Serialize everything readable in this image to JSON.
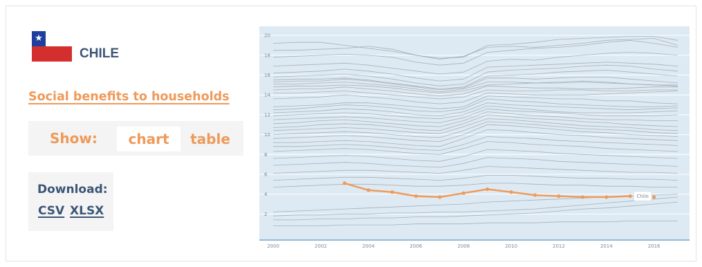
{
  "country": {
    "name": "CHILE",
    "flag_colors": {
      "blue": "#1f3f9f",
      "white": "#ffffff",
      "red": "#d32f2f"
    }
  },
  "indicator": {
    "label": "Social benefits to households"
  },
  "view_toggle": {
    "label": "Show:",
    "options": [
      "chart",
      "table"
    ],
    "selected": "chart"
  },
  "download": {
    "label": "Download:",
    "formats": [
      "CSV",
      "XLSX"
    ]
  },
  "colors": {
    "accent": "#ee9a5a",
    "navy": "#3b5576",
    "chart_bg": "#deeaf3",
    "grid": "#ffffff",
    "context_line": "#8e969d",
    "axis_line": "#6aa3cf"
  },
  "chart_data": {
    "type": "line",
    "title": "",
    "xlabel": "",
    "ylabel": "",
    "xlim": [
      2000,
      2017
    ],
    "ylim": [
      0,
      20.5
    ],
    "x_ticks": [
      2000,
      2002,
      2004,
      2006,
      2008,
      2010,
      2012,
      2014,
      2016
    ],
    "y_ticks": [
      2,
      4,
      6,
      8,
      10,
      12,
      14,
      16,
      18,
      20
    ],
    "grid": true,
    "highlight_label": "Chile",
    "highlight": {
      "name": "Chile",
      "x": [
        2003,
        2004,
        2005,
        2006,
        2007,
        2008,
        2009,
        2010,
        2011,
        2012,
        2013,
        2014,
        2015,
        2016
      ],
      "values": [
        5.1,
        4.4,
        4.2,
        3.8,
        3.7,
        4.1,
        4.5,
        4.2,
        3.9,
        3.8,
        3.7,
        3.7,
        3.8,
        3.7
      ]
    },
    "context_x": [
      2000,
      2001,
      2002,
      2003,
      2004,
      2005,
      2006,
      2007,
      2008,
      2009,
      2010,
      2011,
      2012,
      2013,
      2014,
      2015,
      2016,
      2017
    ],
    "context_series": [
      [
        19.2,
        19.3,
        19.3,
        19.0,
        18.7,
        18.4,
        18.0,
        17.7,
        17.8,
        19.0,
        19.1,
        19.3,
        19.6,
        19.7,
        19.8,
        19.9,
        19.9,
        19.5
      ],
      [
        18.5,
        18.5,
        18.6,
        18.7,
        18.9,
        18.6,
        18.0,
        17.6,
        17.9,
        18.8,
        18.9,
        18.8,
        19.0,
        19.2,
        19.5,
        19.6,
        19.7,
        19.0
      ],
      [
        17.8,
        17.9,
        18.0,
        18.1,
        18.0,
        17.8,
        17.3,
        17.0,
        17.2,
        18.3,
        18.5,
        18.7,
        18.8,
        19.0,
        19.3,
        19.5,
        19.2,
        18.8
      ],
      [
        16.9,
        17.0,
        17.1,
        17.2,
        17.0,
        16.7,
        16.4,
        16.1,
        16.3,
        17.4,
        17.6,
        17.5,
        17.8,
        18.0,
        18.2,
        18.3,
        18.2,
        18.0
      ],
      [
        16.2,
        16.3,
        16.4,
        16.6,
        16.4,
        16.1,
        15.7,
        15.4,
        15.6,
        16.8,
        16.9,
        17.0,
        17.1,
        17.2,
        17.3,
        17.2,
        17.1,
        16.9
      ],
      [
        15.8,
        15.9,
        16.0,
        16.1,
        15.9,
        15.6,
        15.2,
        14.9,
        15.1,
        16.3,
        16.5,
        16.6,
        16.7,
        16.9,
        17.0,
        16.9,
        16.6,
        16.4
      ],
      [
        15.5,
        15.6,
        15.6,
        15.7,
        15.5,
        15.2,
        14.9,
        14.6,
        14.8,
        15.9,
        16.0,
        16.1,
        16.3,
        16.4,
        16.5,
        16.3,
        16.1,
        15.9
      ],
      [
        15.3,
        15.4,
        15.4,
        15.6,
        15.4,
        15.1,
        14.8,
        14.5,
        14.7,
        15.7,
        15.7,
        15.6,
        15.7,
        15.8,
        15.8,
        15.6,
        15.4,
        15.2
      ],
      [
        15.1,
        15.1,
        15.2,
        15.3,
        15.1,
        14.9,
        14.6,
        14.3,
        14.6,
        15.3,
        15.3,
        15.2,
        15.3,
        15.4,
        15.3,
        15.1,
        15.0,
        14.9
      ],
      [
        14.8,
        14.9,
        14.9,
        15.0,
        14.9,
        14.7,
        14.4,
        14.2,
        14.4,
        15.0,
        15.1,
        15.2,
        15.2,
        15.3,
        15.2,
        15.1,
        15.0,
        15.0
      ],
      [
        14.5,
        14.6,
        14.6,
        14.8,
        14.6,
        14.4,
        14.1,
        13.9,
        14.1,
        14.9,
        14.8,
        14.7,
        14.7,
        14.6,
        14.6,
        14.7,
        14.8,
        14.8
      ],
      [
        14.2,
        14.2,
        14.3,
        14.4,
        14.2,
        14.0,
        13.8,
        13.6,
        13.8,
        14.5,
        14.4,
        14.4,
        14.5,
        14.5,
        14.4,
        14.4,
        14.5,
        14.5
      ],
      [
        13.6,
        13.7,
        13.8,
        14.0,
        13.8,
        13.6,
        13.3,
        13.1,
        13.3,
        14.2,
        14.1,
        14.0,
        14.0,
        14.0,
        14.1,
        14.2,
        14.3,
        14.4
      ],
      [
        12.8,
        12.9,
        13.0,
        13.2,
        13.2,
        13.0,
        12.8,
        12.6,
        12.8,
        13.9,
        13.8,
        13.7,
        13.6,
        13.6,
        13.4,
        13.4,
        13.2,
        13.1
      ],
      [
        12.5,
        12.6,
        12.8,
        13.0,
        12.9,
        12.7,
        12.4,
        12.3,
        12.6,
        13.6,
        13.4,
        13.3,
        13.1,
        13.0,
        12.9,
        12.8,
        12.8,
        12.9
      ],
      [
        12.2,
        12.3,
        12.4,
        12.6,
        12.5,
        12.3,
        12.0,
        11.9,
        12.3,
        13.2,
        13.0,
        12.9,
        12.8,
        12.7,
        12.6,
        12.5,
        12.6,
        12.7
      ],
      [
        11.9,
        12.0,
        12.1,
        12.2,
        12.1,
        11.9,
        11.7,
        11.6,
        12.0,
        12.9,
        12.7,
        12.5,
        12.3,
        12.2,
        12.2,
        12.2,
        12.3,
        12.4
      ],
      [
        11.5,
        11.6,
        11.7,
        11.8,
        11.7,
        11.5,
        11.3,
        11.2,
        11.7,
        12.6,
        12.4,
        12.3,
        12.2,
        12.0,
        11.9,
        11.9,
        11.9,
        12.0
      ],
      [
        11.1,
        11.2,
        11.4,
        11.5,
        11.3,
        11.1,
        10.9,
        10.8,
        11.4,
        12.3,
        12.1,
        11.9,
        11.8,
        11.6,
        11.5,
        11.5,
        11.4,
        11.4
      ],
      [
        10.7,
        10.8,
        11.0,
        11.1,
        11.0,
        10.8,
        10.5,
        10.4,
        11.1,
        12.0,
        11.8,
        11.6,
        11.5,
        11.3,
        11.2,
        11.0,
        10.9,
        10.8
      ],
      [
        10.4,
        10.5,
        10.6,
        10.7,
        10.6,
        10.4,
        10.2,
        10.1,
        10.8,
        11.6,
        11.5,
        11.3,
        11.1,
        10.9,
        10.8,
        10.7,
        10.5,
        10.4
      ],
      [
        10.0,
        10.1,
        10.2,
        10.3,
        10.2,
        10.0,
        9.8,
        9.7,
        10.4,
        11.3,
        11.2,
        11.0,
        10.8,
        10.6,
        10.5,
        10.4,
        10.2,
        10.1
      ],
      [
        9.6,
        9.7,
        9.8,
        9.9,
        9.8,
        9.6,
        9.4,
        9.3,
        10.0,
        11.0,
        10.9,
        10.7,
        10.5,
        10.3,
        10.2,
        10.0,
        9.9,
        9.8
      ],
      [
        9.2,
        9.2,
        9.3,
        9.4,
        9.3,
        9.1,
        8.9,
        8.8,
        9.6,
        10.5,
        10.4,
        10.2,
        10.0,
        9.9,
        9.7,
        9.6,
        9.5,
        9.4
      ],
      [
        8.8,
        8.8,
        8.9,
        9.0,
        8.9,
        8.7,
        8.5,
        8.4,
        9.0,
        9.8,
        9.7,
        9.6,
        9.4,
        9.3,
        9.2,
        9.1,
        9.0,
        8.9
      ],
      [
        8.3,
        8.4,
        8.5,
        8.6,
        8.5,
        8.3,
        8.1,
        8.0,
        8.6,
        9.3,
        9.2,
        9.0,
        8.9,
        8.8,
        8.6,
        8.5,
        8.4,
        8.3
      ],
      [
        7.6,
        7.7,
        7.8,
        7.9,
        7.8,
        7.6,
        7.4,
        7.3,
        7.8,
        8.5,
        8.4,
        8.3,
        8.1,
        8.0,
        7.9,
        7.8,
        7.7,
        7.6
      ],
      [
        6.9,
        7.0,
        7.1,
        7.2,
        7.1,
        6.9,
        6.8,
        6.7,
        7.1,
        7.7,
        7.6,
        7.5,
        7.3,
        7.2,
        7.1,
        7.0,
        6.9,
        6.8
      ],
      [
        6.1,
        6.2,
        6.3,
        6.4,
        6.4,
        6.3,
        6.2,
        6.1,
        6.4,
        6.8,
        6.7,
        6.6,
        6.5,
        6.4,
        6.3,
        6.2,
        6.2,
        6.1
      ],
      [
        5.4,
        5.5,
        5.6,
        5.7,
        5.7,
        5.6,
        5.5,
        5.4,
        5.6,
        5.9,
        5.9,
        5.8,
        5.7,
        5.6,
        5.6,
        5.5,
        5.5,
        5.4
      ],
      [
        4.7,
        4.8,
        4.9,
        5.0,
        5.0,
        4.9,
        4.8,
        4.8,
        4.9,
        5.1,
        5.1,
        5.0,
        4.9,
        4.9,
        4.8,
        4.8,
        4.7,
        4.7
      ],
      [
        2.2,
        2.3,
        2.4,
        2.5,
        2.6,
        2.7,
        2.8,
        2.9,
        3.0,
        3.2,
        3.3,
        3.4,
        3.5,
        3.6,
        3.7,
        3.8,
        3.9,
        4.0
      ],
      [
        1.8,
        1.9,
        1.9,
        2.0,
        2.0,
        2.1,
        2.1,
        2.2,
        2.2,
        2.3,
        2.4,
        2.5,
        2.7,
        2.9,
        3.1,
        3.3,
        3.5,
        3.7
      ],
      [
        1.4,
        1.4,
        1.5,
        1.5,
        1.6,
        1.6,
        1.7,
        1.7,
        1.8,
        1.9,
        2.0,
        2.1,
        2.3,
        2.5,
        2.6,
        2.8,
        3.0,
        3.2
      ],
      [
        0.8,
        0.8,
        0.8,
        0.9,
        0.9,
        0.9,
        1.0,
        1.0,
        1.0,
        1.1,
        1.1,
        1.1,
        1.2,
        1.2,
        1.2,
        1.3,
        1.3,
        1.3
      ]
    ]
  }
}
